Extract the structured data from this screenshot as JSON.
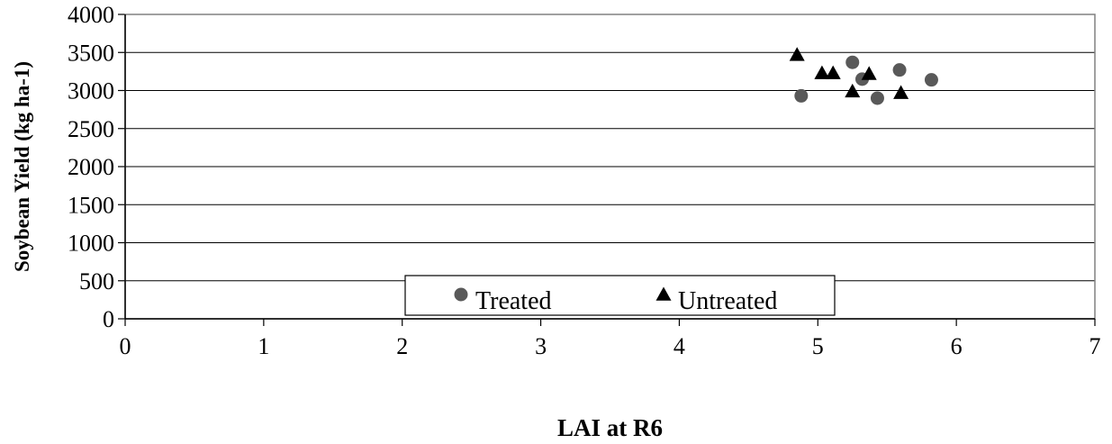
{
  "chart_data": {
    "type": "scatter",
    "xlabel": "LAI at R6",
    "ylabel": "Soybean Yield (kg ha-1)",
    "xlim": [
      0,
      7
    ],
    "ylim": [
      0,
      4000
    ],
    "x_ticks": [
      "0",
      "1",
      "2",
      "3",
      "4",
      "5",
      "6",
      "7"
    ],
    "y_ticks": [
      "0",
      "500",
      "1000",
      "1500",
      "2000",
      "2500",
      "3000",
      "3500",
      "4000"
    ],
    "grid": "horizontal",
    "legend_placement": "bottom-center",
    "series": [
      {
        "name": "Treated",
        "marker": "circle",
        "color": "#595959",
        "points": [
          {
            "x": 4.88,
            "y": 2930
          },
          {
            "x": 5.25,
            "y": 3370
          },
          {
            "x": 5.32,
            "y": 3150
          },
          {
            "x": 5.43,
            "y": 2900
          },
          {
            "x": 5.59,
            "y": 3270
          },
          {
            "x": 5.82,
            "y": 3140
          }
        ]
      },
      {
        "name": "Untreated",
        "marker": "triangle",
        "color": "#000000",
        "points": [
          {
            "x": 4.85,
            "y": 3470
          },
          {
            "x": 5.03,
            "y": 3230
          },
          {
            "x": 5.11,
            "y": 3230
          },
          {
            "x": 5.25,
            "y": 2990
          },
          {
            "x": 5.37,
            "y": 3220
          },
          {
            "x": 5.6,
            "y": 2970
          }
        ]
      }
    ]
  }
}
